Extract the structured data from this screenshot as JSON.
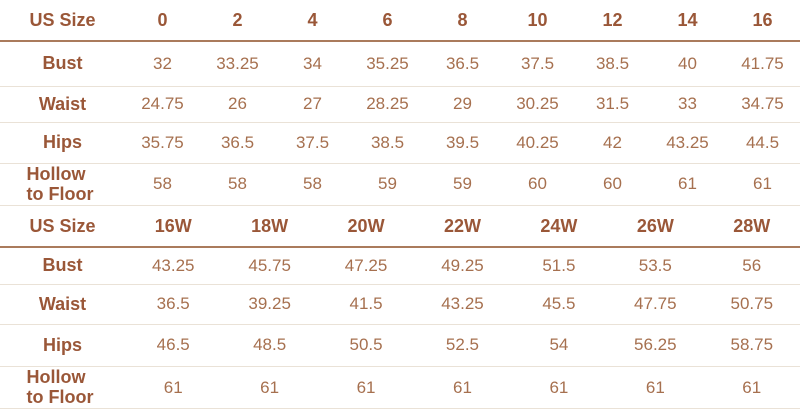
{
  "colors": {
    "header_text": "#9a5738",
    "value_text": "#a6704f",
    "header_rule": "#aa7b5c",
    "row_rule": "#eae2d7",
    "background": "#ffffff"
  },
  "chart_data": [
    {
      "type": "table",
      "header": {
        "label": "US Size",
        "sizes": [
          "0",
          "2",
          "4",
          "6",
          "8",
          "10",
          "12",
          "14",
          "16"
        ]
      },
      "rows": [
        {
          "label": "Bust",
          "values": [
            "32",
            "33.25",
            "34",
            "35.25",
            "36.5",
            "37.5",
            "38.5",
            "40",
            "41.75"
          ]
        },
        {
          "label": "Waist",
          "values": [
            "24.75",
            "26",
            "27",
            "28.25",
            "29",
            "30.25",
            "31.5",
            "33",
            "34.75"
          ]
        },
        {
          "label": "Hips",
          "values": [
            "35.75",
            "36.5",
            "37.5",
            "38.5",
            "39.5",
            "40.25",
            "42",
            "43.25",
            "44.5"
          ]
        },
        {
          "label": "Hollow to Floor",
          "values": [
            "58",
            "58",
            "58",
            "59",
            "59",
            "60",
            "60",
            "61",
            "61"
          ]
        }
      ]
    },
    {
      "type": "table",
      "header": {
        "label": "US Size",
        "sizes": [
          "16W",
          "18W",
          "20W",
          "22W",
          "24W",
          "26W",
          "28W"
        ]
      },
      "rows": [
        {
          "label": "Bust",
          "values": [
            "43.25",
            "45.75",
            "47.25",
            "49.25",
            "51.5",
            "53.5",
            "56"
          ]
        },
        {
          "label": "Waist",
          "values": [
            "36.5",
            "39.25",
            "41.5",
            "43.25",
            "45.5",
            "47.75",
            "50.75"
          ]
        },
        {
          "label": "Hips",
          "values": [
            "46.5",
            "48.5",
            "50.5",
            "52.5",
            "54",
            "56.25",
            "58.75"
          ]
        },
        {
          "label": "Hollow to Floor",
          "values": [
            "61",
            "61",
            "61",
            "61",
            "61",
            "61",
            "61"
          ]
        }
      ]
    }
  ]
}
